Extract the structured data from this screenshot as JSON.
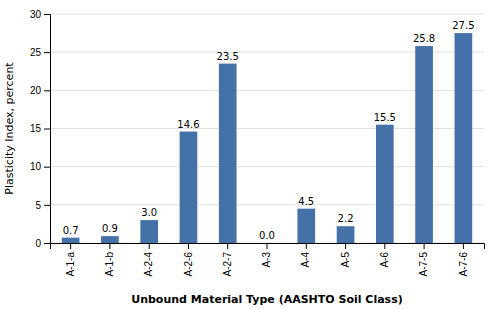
{
  "chart_data": {
    "type": "bar",
    "categories": [
      "A-1-a",
      "A-1-b",
      "A-2-4",
      "A-2-6",
      "A-2-7",
      "A-3",
      "A-4",
      "A-5",
      "A-6",
      "A-7-5",
      "A-7-6"
    ],
    "values": [
      0.7,
      0.9,
      3.0,
      14.6,
      23.5,
      0.0,
      4.5,
      2.2,
      15.5,
      25.8,
      27.5
    ],
    "value_labels": [
      "0.7",
      "0.9",
      "3.0",
      "14.6",
      "23.5",
      "0.0",
      "4.5",
      "2.2",
      "15.5",
      "25.8",
      "27.5"
    ],
    "color": "#4472a8",
    "xlabel": "Unbound Material Type (AASHTO Soil Class)",
    "ylabel": "Plasticity Index, percent",
    "ylim": [
      0,
      30
    ],
    "yticks": [
      0,
      5,
      10,
      15,
      20,
      25,
      30
    ],
    "grid": true,
    "data_labels": true
  }
}
